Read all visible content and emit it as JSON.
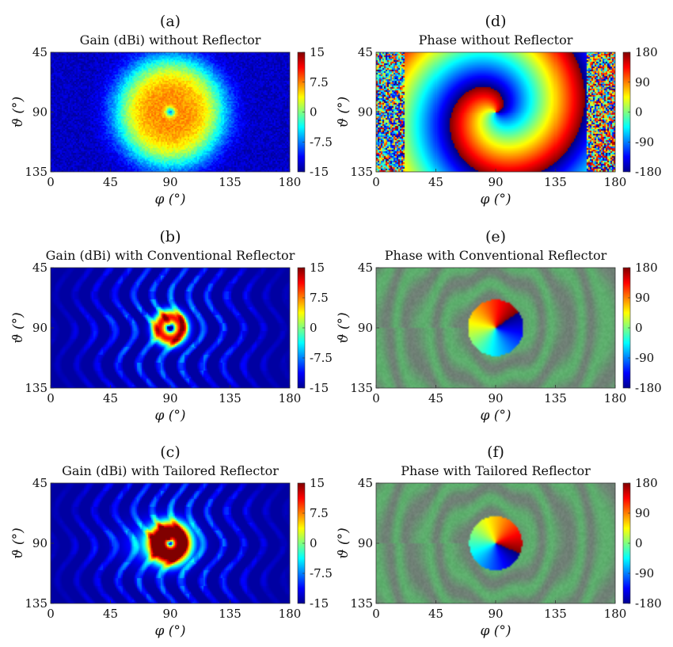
{
  "chart_data": [
    {
      "panel_label": "(a)",
      "title": "Gain (dBi) without Reflector",
      "type": "heatmap",
      "quantity": "gain",
      "xlabel": "φ (°)",
      "ylabel": "ϑ (°)",
      "x_ticks": [
        "0",
        "45",
        "90",
        "135",
        "180"
      ],
      "y_ticks": [
        "45",
        "90",
        "135"
      ],
      "colorbar_ticks": [
        "15",
        "7.5",
        "0",
        "-7.5",
        "-15"
      ],
      "xlim": [
        0,
        180
      ],
      "ylim": [
        45,
        135
      ],
      "clim": [
        -15,
        15
      ],
      "colormap": "jet",
      "features": {
        "peak_dbi": 7,
        "null_at": [
          90,
          90
        ],
        "main_lobe_radius_deg": 38
      }
    },
    {
      "panel_label": "(b)",
      "title": "Gain (dBi) with Conventional Reflector",
      "type": "heatmap",
      "quantity": "gain",
      "xlabel": "φ (°)",
      "ylabel": "ϑ (°)",
      "x_ticks": [
        "0",
        "45",
        "90",
        "135",
        "180"
      ],
      "y_ticks": [
        "45",
        "90",
        "135"
      ],
      "colorbar_ticks": [
        "15",
        "7.5",
        "0",
        "-7.5",
        "-15"
      ],
      "xlim": [
        0,
        180
      ],
      "ylim": [
        45,
        135
      ],
      "clim": [
        -15,
        15
      ],
      "colormap": "jet",
      "features": {
        "peak_dbi": 11,
        "null_at": [
          90,
          90
        ],
        "ring_radius_deg": 8
      }
    },
    {
      "panel_label": "(c)",
      "title": "Gain (dBi) with Tailored Reflector",
      "type": "heatmap",
      "quantity": "gain",
      "xlabel": "φ (°)",
      "ylabel": "ϑ (°)",
      "x_ticks": [
        "0",
        "45",
        "90",
        "135",
        "180"
      ],
      "y_ticks": [
        "45",
        "90",
        "135"
      ],
      "colorbar_ticks": [
        "15",
        "7.5",
        "0",
        "-7.5",
        "-15"
      ],
      "xlim": [
        0,
        180
      ],
      "ylim": [
        45,
        135
      ],
      "clim": [
        -15,
        15
      ],
      "colormap": "jet",
      "features": {
        "peak_dbi": 12,
        "null_at": [
          90,
          90
        ],
        "ring_radius_deg": 9
      }
    },
    {
      "panel_label": "(d)",
      "title": "Phase without Reflector",
      "type": "heatmap",
      "quantity": "phase",
      "xlabel": "φ (°)",
      "ylabel": "ϑ (°)",
      "x_ticks": [
        "0",
        "45",
        "90",
        "135",
        "180"
      ],
      "y_ticks": [
        "45",
        "90",
        "135"
      ],
      "colorbar_ticks": [
        "180",
        "90",
        "0",
        "-90",
        "-180"
      ],
      "xlim": [
        0,
        180
      ],
      "ylim": [
        45,
        135
      ],
      "clim": [
        -180,
        180
      ],
      "colormap": "jet",
      "features": {
        "spiral_center": [
          90,
          90
        ],
        "pattern": "spiral"
      }
    },
    {
      "panel_label": "(e)",
      "title": "Phase with Conventional Reflector",
      "type": "heatmap",
      "quantity": "phase",
      "xlabel": "φ (°)",
      "ylabel": "ϑ (°)",
      "x_ticks": [
        "0",
        "45",
        "90",
        "135",
        "180"
      ],
      "y_ticks": [
        "45",
        "90",
        "135"
      ],
      "colorbar_ticks": [
        "180",
        "90",
        "0",
        "-90",
        "-180"
      ],
      "xlim": [
        0,
        180
      ],
      "ylim": [
        45,
        135
      ],
      "clim": [
        -180,
        180
      ],
      "colormap": "jet",
      "features": {
        "vortex_center": [
          90,
          90
        ],
        "vortex_radius_deg": 21,
        "background": "masked"
      }
    },
    {
      "panel_label": "(f)",
      "title": "Phase with Tailored Reflector",
      "type": "heatmap",
      "quantity": "phase",
      "xlabel": "φ (°)",
      "ylabel": "ϑ (°)",
      "x_ticks": [
        "0",
        "45",
        "90",
        "135",
        "180"
      ],
      "y_ticks": [
        "45",
        "90",
        "135"
      ],
      "colorbar_ticks": [
        "180",
        "90",
        "0",
        "-90",
        "-180"
      ],
      "xlim": [
        0,
        180
      ],
      "ylim": [
        45,
        135
      ],
      "clim": [
        -180,
        180
      ],
      "colormap": "jet",
      "features": {
        "vortex_center": [
          90,
          90
        ],
        "vortex_radius_deg": 20,
        "background": "masked"
      }
    }
  ]
}
